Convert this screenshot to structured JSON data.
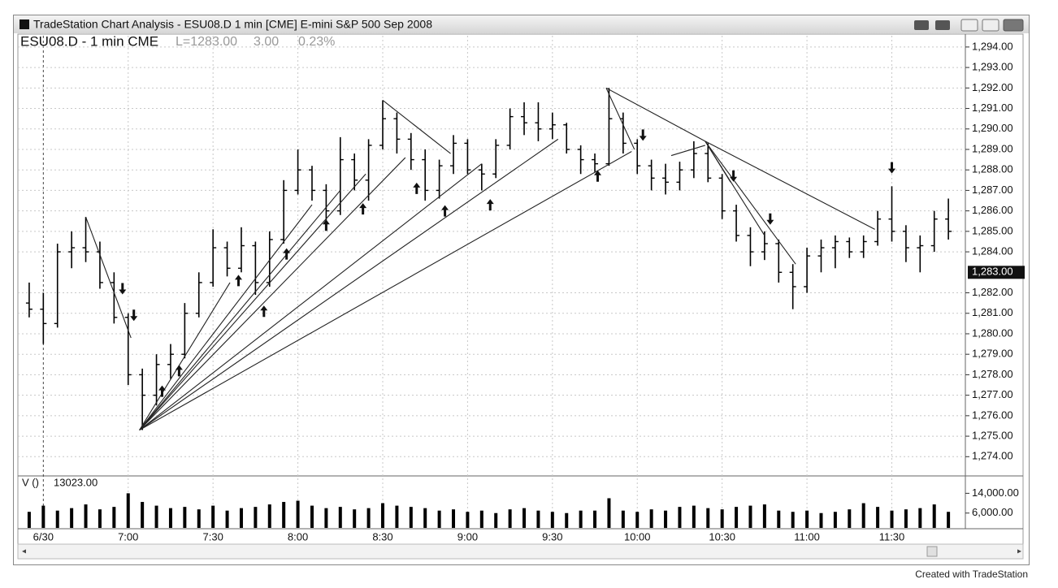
{
  "window": {
    "title": "TradeStation Chart Analysis - ESU08.D 1 min [CME] E-mini S&P 500 Sep 2008"
  },
  "footer": "Created with TradeStation",
  "chart_data": {
    "type": "ohlc",
    "title": "ESU08.D - 1 min CME",
    "last": "L=1283.00",
    "change": "3.00",
    "change_pct": "0.23%",
    "color": "#000000",
    "grid": true,
    "x": [
      "6:25",
      "6:30",
      "6:35",
      "6:40",
      "6:45",
      "6:50",
      "6:55",
      "7:00",
      "7:05",
      "7:10",
      "7:15",
      "7:20",
      "7:25",
      "7:30",
      "7:35",
      "7:40",
      "7:45",
      "7:50",
      "7:55",
      "8:00",
      "8:05",
      "8:10",
      "8:15",
      "8:20",
      "8:25",
      "8:30",
      "8:35",
      "8:40",
      "8:45",
      "8:50",
      "8:55",
      "9:00",
      "9:05",
      "9:10",
      "9:15",
      "9:20",
      "9:25",
      "9:30",
      "9:35",
      "9:40",
      "9:45",
      "9:50",
      "9:55",
      "10:00",
      "10:05",
      "10:10",
      "10:15",
      "10:20",
      "10:25",
      "10:30",
      "10:35",
      "10:40",
      "10:45",
      "10:50",
      "10:55",
      "11:00",
      "11:05",
      "11:10",
      "11:15",
      "11:20",
      "11:25",
      "11:30",
      "11:35",
      "11:40",
      "11:45",
      "11:50"
    ],
    "open": [
      1281.5,
      1281.2,
      1280.5,
      1284,
      1284.2,
      1284,
      1282.5,
      1280.8,
      1278,
      1277,
      1278.5,
      1279,
      1281,
      1282.5,
      1284.2,
      1283.2,
      1284.3,
      1282.5,
      1284.6,
      1287,
      1288,
      1287,
      1286,
      1288.5,
      1287.5,
      1289.2,
      1290.5,
      1289.5,
      1288.5,
      1287,
      1288.2,
      1289.3,
      1288,
      1287.8,
      1289.2,
      1290.6,
      1290.3,
      1290,
      1290.2,
      1289,
      1288.5,
      1288.3,
      1290.5,
      1289.3,
      1288.2,
      1287.6,
      1287.4,
      1288,
      1288.8,
      1287.6,
      1286,
      1284.8,
      1284,
      1284.4,
      1283,
      1282.3,
      1283.8,
      1284.2,
      1284.5,
      1284,
      1284.5,
      1285.6,
      1285,
      1284.2,
      1284.3,
      1285.6
    ],
    "high": [
      1282.5,
      1282,
      1284.4,
      1285,
      1285.7,
      1284.5,
      1283,
      1281,
      1278.3,
      1279,
      1279.5,
      1281.5,
      1283,
      1285.1,
      1284.5,
      1285.2,
      1284.5,
      1285,
      1287.5,
      1289,
      1288.2,
      1287.3,
      1289.6,
      1288.8,
      1289.5,
      1291.4,
      1290.8,
      1289.8,
      1289,
      1288.5,
      1289.7,
      1289.5,
      1288.3,
      1289.5,
      1291,
      1291.3,
      1291.3,
      1290.8,
      1290.3,
      1289.2,
      1288.8,
      1292,
      1290.8,
      1289.5,
      1288.5,
      1288.3,
      1288.4,
      1289.4,
      1289.3,
      1287.8,
      1286.3,
      1285.2,
      1285,
      1284.6,
      1283.4,
      1284.2,
      1284.6,
      1284.8,
      1284.7,
      1284.8,
      1286,
      1287.2,
      1285.3,
      1284.8,
      1286,
      1286.6
    ],
    "low": [
      1280.8,
      1279.5,
      1280.3,
      1283.2,
      1283.5,
      1282.2,
      1280.5,
      1277.5,
      1275.3,
      1276.5,
      1277.8,
      1278.8,
      1280.8,
      1282.3,
      1282.8,
      1283,
      1281.9,
      1282.3,
      1284.4,
      1286.8,
      1286.5,
      1285.5,
      1285.8,
      1287,
      1286.5,
      1289,
      1288.8,
      1288,
      1286.5,
      1286.6,
      1287.8,
      1287.8,
      1287,
      1287.6,
      1289,
      1289.7,
      1289.4,
      1289.5,
      1288.8,
      1287.8,
      1287.9,
      1288.2,
      1288.8,
      1287.8,
      1287,
      1286.8,
      1287,
      1287.6,
      1287.4,
      1285.6,
      1284.5,
      1283.3,
      1283.6,
      1282.5,
      1281.2,
      1282,
      1283,
      1283.2,
      1283.7,
      1283.7,
      1284.3,
      1284.5,
      1283.5,
      1283,
      1284,
      1284.6
    ],
    "close": [
      1281.2,
      1280.5,
      1284,
      1284.2,
      1284,
      1282.5,
      1280.8,
      1278,
      1277,
      1278.5,
      1279,
      1281,
      1282.5,
      1284.2,
      1283.2,
      1284.3,
      1282.5,
      1284.6,
      1287,
      1288,
      1287,
      1286,
      1288.5,
      1287.5,
      1289.2,
      1290.5,
      1289.5,
      1288.5,
      1287,
      1288.2,
      1289.3,
      1288,
      1287.8,
      1289.2,
      1290.6,
      1290.3,
      1290,
      1290.2,
      1289,
      1288.5,
      1288.3,
      1290.5,
      1289.3,
      1288.2,
      1287.6,
      1287.4,
      1288,
      1288.8,
      1287.6,
      1286,
      1284.8,
      1284,
      1284.4,
      1283,
      1282.3,
      1283.8,
      1284.2,
      1284.5,
      1284,
      1284.5,
      1285.6,
      1285,
      1284.2,
      1284.3,
      1285.6,
      1285
    ],
    "xlim": [
      "6:21",
      "11:56"
    ],
    "xticks": [
      {
        "value": "6:30",
        "label": "6/30"
      },
      "7:00",
      "7:30",
      "8:00",
      "8:30",
      "9:00",
      "9:30",
      "10:00",
      "10:30",
      "11:00",
      "11:30"
    ],
    "ylim": [
      1273.1,
      1294.55
    ],
    "yticks": [
      {
        "value": 1274,
        "label": "1,274.00"
      },
      {
        "value": 1275,
        "label": "1,275.00"
      },
      {
        "value": 1276,
        "label": "1,276.00"
      },
      {
        "value": 1277,
        "label": "1,277.00"
      },
      {
        "value": 1278,
        "label": "1,278.00"
      },
      {
        "value": 1279,
        "label": "1,279.00"
      },
      {
        "value": 1280,
        "label": "1,280.00"
      },
      {
        "value": 1281,
        "label": "1,281.00"
      },
      {
        "value": 1282,
        "label": "1,282.00"
      },
      {
        "value": 1284,
        "label": "1,284.00"
      },
      {
        "value": 1285,
        "label": "1,285.00"
      },
      {
        "value": 1286,
        "label": "1,286.00"
      },
      {
        "value": 1287,
        "label": "1,287.00"
      },
      {
        "value": 1288,
        "label": "1,288.00"
      },
      {
        "value": 1289,
        "label": "1,289.00"
      },
      {
        "value": 1290,
        "label": "1,290.00"
      },
      {
        "value": 1291,
        "label": "1,291.00"
      },
      {
        "value": 1292,
        "label": "1,292.00"
      },
      {
        "value": 1293,
        "label": "1,293.00"
      },
      {
        "value": 1294,
        "label": "1,294.00"
      }
    ],
    "last_price": {
      "value": 1283,
      "label": "1,283.00"
    },
    "trendlines": [
      {
        "x": [
          "7:04",
          "7:36"
        ],
        "y": [
          1275.3,
          1282.5
        ]
      },
      {
        "x": [
          "7:04",
          "8:05"
        ],
        "y": [
          1275.3,
          1286.3
        ]
      },
      {
        "x": [
          "7:04",
          "8:15"
        ],
        "y": [
          1275.3,
          1287
        ]
      },
      {
        "x": [
          "7:04",
          "8:24"
        ],
        "y": [
          1275.3,
          1287.8
        ]
      },
      {
        "x": [
          "7:04",
          "8:38"
        ],
        "y": [
          1275.3,
          1288.6
        ]
      },
      {
        "x": [
          "7:04",
          "9:05"
        ],
        "y": [
          1275.3,
          1288.3
        ]
      },
      {
        "x": [
          "7:04",
          "9:32"
        ],
        "y": [
          1275.3,
          1289.5
        ]
      },
      {
        "x": [
          "7:04",
          "9:58"
        ],
        "y": [
          1275.3,
          1288.9
        ]
      },
      {
        "x": [
          "6:45",
          "7:01"
        ],
        "y": [
          1285.7,
          1279.8
        ]
      },
      {
        "x": [
          "8:30",
          "8:54"
        ],
        "y": [
          1291.4,
          1288.8
        ]
      },
      {
        "x": [
          "9:49",
          "10:24"
        ],
        "y": [
          1292,
          1289.4
        ]
      },
      {
        "x": [
          "9:49",
          "9:59"
        ],
        "y": [
          1292,
          1289
        ]
      },
      {
        "x": [
          "10:24",
          "11:24"
        ],
        "y": [
          1289.4,
          1285.1
        ]
      },
      {
        "x": [
          "10:24",
          "10:56"
        ],
        "y": [
          1289.4,
          1283.4
        ]
      },
      {
        "x": [
          "10:24",
          "10:45"
        ],
        "y": [
          1289.4,
          1284.8
        ]
      },
      {
        "x": [
          "10:24",
          "10:33"
        ],
        "y": [
          1289.4,
          1287.4
        ]
      },
      {
        "x": [
          "10:12",
          "10:24"
        ],
        "y": [
          1288.7,
          1289.2
        ]
      }
    ],
    "arrows": [
      {
        "x": "7:12",
        "y": 1277.2,
        "dir": "up"
      },
      {
        "x": "7:18",
        "y": 1278.2,
        "dir": "up"
      },
      {
        "x": "7:39",
        "y": 1282.6,
        "dir": "up"
      },
      {
        "x": "7:48",
        "y": 1281.1,
        "dir": "up"
      },
      {
        "x": "7:56",
        "y": 1283.9,
        "dir": "up"
      },
      {
        "x": "8:10",
        "y": 1285.3,
        "dir": "up"
      },
      {
        "x": "8:23",
        "y": 1286.1,
        "dir": "up"
      },
      {
        "x": "8:42",
        "y": 1287.1,
        "dir": "up"
      },
      {
        "x": "8:52",
        "y": 1286,
        "dir": "up"
      },
      {
        "x": "9:08",
        "y": 1286.3,
        "dir": "up"
      },
      {
        "x": "9:46",
        "y": 1287.7,
        "dir": "up"
      },
      {
        "x": "6:58",
        "y": 1282.2,
        "dir": "down"
      },
      {
        "x": "7:02",
        "y": 1280.9,
        "dir": "down"
      },
      {
        "x": "10:02",
        "y": 1289.7,
        "dir": "down"
      },
      {
        "x": "10:34",
        "y": 1287.7,
        "dir": "down"
      },
      {
        "x": "10:47",
        "y": 1285.6,
        "dir": "down"
      },
      {
        "x": "11:30",
        "y": 1288.1,
        "dir": "down"
      }
    ],
    "volume": {
      "title": "V ()",
      "last": "13023.00",
      "values": [
        6500,
        9000,
        7000,
        8000,
        9500,
        7500,
        8500,
        14000,
        10500,
        9000,
        8000,
        8500,
        7500,
        9000,
        7000,
        8000,
        8500,
        9500,
        10500,
        11000,
        9000,
        8000,
        8500,
        7500,
        8000,
        10000,
        9000,
        8500,
        8000,
        7000,
        7500,
        6500,
        7000,
        6000,
        7500,
        8000,
        7000,
        6500,
        6000,
        7000,
        7000,
        12000,
        7000,
        6500,
        7500,
        7000,
        8500,
        9000,
        8000,
        7500,
        8500,
        9000,
        9500,
        7000,
        6500,
        7000,
        6000,
        6500,
        7500,
        10000,
        8500,
        7000,
        7500,
        8000,
        9500,
        6500
      ],
      "ylim": [
        0,
        20700
      ],
      "yticks": [
        {
          "value": 6000,
          "label": "6,000.00"
        },
        {
          "value": 14000,
          "label": "14,000.00"
        }
      ]
    }
  }
}
